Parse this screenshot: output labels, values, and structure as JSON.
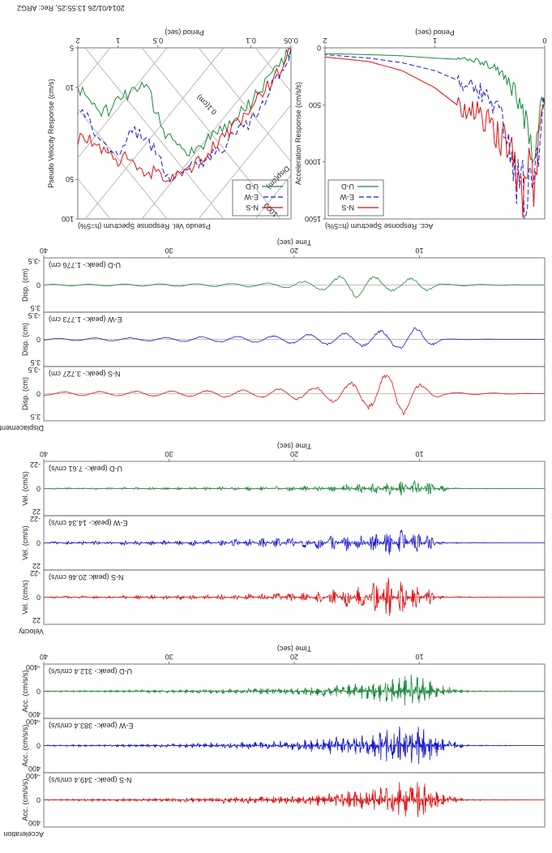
{
  "header": {
    "timestamp": "2014/01/26 13:55:25, Rec: ARG2",
    "period_label_top": "Period (sec)",
    "period_label_right": "Period (sec)"
  },
  "pseudo_velocity": {
    "title": "Pseudo Vel. Response Spectrum (h=5%)",
    "ylabel": "Pseudo Velocity Response (cm/s)",
    "diag_labels": [
      "0.1(cm)",
      "Disp(cm)",
      "1000",
      "10"
    ],
    "x_ticks": [
      "0.05",
      "0.1",
      "0.5",
      "1",
      "2"
    ],
    "y_ticks": [
      "5",
      "10",
      "50",
      "100"
    ],
    "scale": "log-log",
    "legend": [
      "U-D",
      "E-W",
      "N-S"
    ]
  },
  "accel_spectrum": {
    "title": "Acc. Response Spectrum (h=5%)",
    "ylabel": "Acceleration Response (cm/s/s)",
    "x_ticks": [
      "0",
      "1",
      "2"
    ],
    "y_ticks": [
      "0",
      "500",
      "1000",
      "1500"
    ],
    "legend": [
      "U-D",
      "E-W",
      "N-S"
    ]
  },
  "sections": [
    {
      "id": "disp",
      "group_label": "Displacement",
      "time_label": "Time (sec)",
      "time_ticks": [
        "10",
        "20",
        "30",
        "40"
      ],
      "traces": [
        {
          "comp": "U-D",
          "label": "U-D (peak:- 1.776 cm)",
          "ylabel": "Disp. (cm)",
          "ticks": [
            "-3.5",
            "0",
            "3.5"
          ],
          "color": "#1a8a3a"
        },
        {
          "comp": "E-W",
          "label": "E-W (peak:- 1.773 cm)",
          "ylabel": "Disp. (cm)",
          "ticks": [
            "-3.5",
            "0",
            "3.5"
          ],
          "color": "#1a1ad0"
        },
        {
          "comp": "N-S",
          "label": "N-S (peak:- 3.727 cm)",
          "ylabel": "Disp. (cm)",
          "ticks": [
            "-3.5",
            "0",
            "3.5"
          ],
          "color": "#e01010"
        }
      ]
    },
    {
      "id": "vel",
      "group_label": "Velocity",
      "time_label": "Time (sec)",
      "time_ticks": [
        "10",
        "20",
        "30",
        "40"
      ],
      "traces": [
        {
          "comp": "U-D",
          "label": "U-D (peak:- 7.61 cm/s)",
          "ylabel": "Vel. (cm/s)",
          "ticks": [
            "-22",
            "0",
            "22"
          ],
          "color": "#1a8a3a"
        },
        {
          "comp": "E-W",
          "label": "E-W (peak:- 14.34 cm/s)",
          "ylabel": "Vel. (cm/s)",
          "ticks": [
            "-22",
            "0",
            "22"
          ],
          "color": "#1a1ad0"
        },
        {
          "comp": "N-S",
          "label": "N-S (peak: 20.46 cm/s)",
          "ylabel": "Vel. (cm/s)",
          "ticks": [
            "-22",
            "0",
            "22"
          ],
          "color": "#e01010"
        }
      ]
    },
    {
      "id": "acc",
      "group_label": "Acceleration",
      "time_label": "Time (sec)",
      "time_ticks": [
        "10",
        "20",
        "30",
        "40"
      ],
      "traces": [
        {
          "comp": "U-D",
          "label": "U-D (peak:- 312.4 cm/s/s)",
          "ylabel": "Acc. (cm/s/s)",
          "ticks": [
            "-400",
            "0",
            "400"
          ],
          "color": "#1a8a3a"
        },
        {
          "comp": "E-W",
          "label": "E-W (peak:- 383.4 cm/s/s)",
          "ylabel": "Acc. (cm/s/s)",
          "ticks": [
            "-400",
            "0",
            "400"
          ],
          "color": "#1a1ad0"
        },
        {
          "comp": "N-S",
          "label": "N-S (peak:- 349.4 cm/s/s)",
          "ylabel": "Acc. (cm/s/s)",
          "ticks": [
            "-400",
            "0",
            "400"
          ],
          "color": "#e01010"
        }
      ]
    }
  ],
  "chart_data": [
    {
      "type": "line",
      "title": "Pseudo Vel. Response Spectrum (h=5%)",
      "xlabel": "Period (sec)",
      "ylabel": "Pseudo Velocity Response (cm/s)",
      "xlim": [
        0.05,
        2
      ],
      "ylim": [
        5,
        100
      ],
      "scale": "log",
      "x": [
        0.05,
        0.07,
        0.1,
        0.15,
        0.2,
        0.3,
        0.4,
        0.5,
        0.6,
        0.8,
        1.0,
        1.3,
        1.6,
        2.0
      ],
      "series": [
        {
          "name": "U-D",
          "color": "#1a8a3a",
          "values": [
            5,
            8,
            13,
            19,
            24,
            32,
            26,
            17,
            9,
            11,
            13,
            16,
            12,
            10
          ]
        },
        {
          "name": "E-W",
          "color": "#1a1ad0",
          "values": [
            5,
            10,
            18,
            26,
            34,
            42,
            50,
            34,
            24,
            22,
            34,
            28,
            18,
            15
          ]
        },
        {
          "name": "N-S",
          "color": "#e01010",
          "values": [
            5,
            9,
            14,
            22,
            30,
            42,
            52,
            42,
            48,
            32,
            38,
            30,
            26,
            25
          ]
        }
      ]
    },
    {
      "type": "line",
      "title": "Acc. Response Spectrum (h=5%)",
      "xlabel": "Period (sec)",
      "ylabel": "Acceleration Response (cm/s/s)",
      "xlim": [
        0,
        2
      ],
      "ylim": [
        0,
        1500
      ],
      "x": [
        0.02,
        0.06,
        0.1,
        0.14,
        0.18,
        0.22,
        0.26,
        0.3,
        0.4,
        0.5,
        0.6,
        0.8,
        1.0,
        1.3,
        1.6,
        2.0
      ],
      "series": [
        {
          "name": "U-D",
          "color": "#1a8a3a",
          "values": [
            450,
            700,
            900,
            800,
            650,
            500,
            420,
            350,
            220,
            150,
            120,
            100,
            90,
            70,
            60,
            50
          ]
        },
        {
          "name": "E-W",
          "color": "#1a1ad0",
          "values": [
            500,
            900,
            1300,
            1100,
            1450,
            1000,
            1250,
            900,
            600,
            450,
            380,
            280,
            200,
            130,
            90,
            60
          ]
        },
        {
          "name": "N-S",
          "color": "#e01010",
          "values": [
            480,
            850,
            1200,
            1050,
            1350,
            1150,
            1100,
            950,
            800,
            700,
            600,
            500,
            350,
            200,
            120,
            80
          ]
        }
      ]
    },
    {
      "type": "line",
      "title": "Displacement",
      "xlabel": "Time (sec)",
      "ylabel": "Disp. (cm)",
      "xlim": [
        0,
        40
      ],
      "ylim": [
        -3.5,
        3.5
      ],
      "series": [
        {
          "name": "U-D (peak:- 1.776 cm)",
          "color": "#1a8a3a",
          "envelope": [
            [
              0,
              0
            ],
            [
              8,
              0.15
            ],
            [
              10,
              1.2
            ],
            [
              12,
              0.8
            ],
            [
              15,
              1.78
            ],
            [
              18,
              0.7
            ],
            [
              22,
              0.3
            ],
            [
              30,
              0.2
            ],
            [
              40,
              0.1
            ]
          ]
        },
        {
          "name": "E-W (peak:- 1.773 cm)",
          "color": "#1a1ad0",
          "envelope": [
            [
              0,
              0
            ],
            [
              8,
              0.05
            ],
            [
              10,
              1.77
            ],
            [
              12,
              1.4
            ],
            [
              15,
              1.0
            ],
            [
              18,
              0.8
            ],
            [
              22,
              0.5
            ],
            [
              30,
              0.3
            ],
            [
              40,
              0.15
            ]
          ]
        },
        {
          "name": "N-S (peak:- 3.727 cm)",
          "color": "#e01010",
          "envelope": [
            [
              0,
              0
            ],
            [
              8,
              0.2
            ],
            [
              10,
              1.5
            ],
            [
              12,
              3.73
            ],
            [
              14,
              2.2
            ],
            [
              17,
              1.2
            ],
            [
              22,
              0.6
            ],
            [
              30,
              0.4
            ],
            [
              40,
              0.25
            ]
          ]
        }
      ]
    },
    {
      "type": "line",
      "title": "Velocity",
      "xlabel": "Time (sec)",
      "ylabel": "Vel. (cm/s)",
      "xlim": [
        0,
        40
      ],
      "ylim": [
        -22,
        22
      ],
      "series": [
        {
          "name": "U-D (peak:- 7.61 cm/s)",
          "color": "#1a8a3a",
          "envelope": [
            [
              0,
              0
            ],
            [
              7,
              0.5
            ],
            [
              10,
              7.6
            ],
            [
              13,
              6
            ],
            [
              15,
              5
            ],
            [
              18,
              2.5
            ],
            [
              25,
              1.5
            ],
            [
              40,
              0.6
            ]
          ]
        },
        {
          "name": "E-W (peak:- 14.34 cm/s)",
          "color": "#1a1ad0",
          "envelope": [
            [
              0,
              0
            ],
            [
              8,
              0.5
            ],
            [
              10,
              14.3
            ],
            [
              12,
              12
            ],
            [
              15,
              9
            ],
            [
              18,
              6
            ],
            [
              25,
              3
            ],
            [
              40,
              1.2
            ]
          ]
        },
        {
          "name": "N-S (peak: 20.46 cm/s)",
          "color": "#e01010",
          "envelope": [
            [
              0,
              0
            ],
            [
              8,
              0.8
            ],
            [
              10,
              12
            ],
            [
              12,
              18
            ],
            [
              13,
              20.46
            ],
            [
              15,
              10
            ],
            [
              18,
              5
            ],
            [
              25,
              2.5
            ],
            [
              40,
              1.0
            ]
          ]
        }
      ]
    },
    {
      "type": "line",
      "title": "Acceleration",
      "xlabel": "Time (sec)",
      "ylabel": "Acc. (cm/s/s)",
      "xlim": [
        0,
        40
      ],
      "ylim": [
        -400,
        400
      ],
      "series": [
        {
          "name": "U-D (peak:- 312.4 cm/s/s)",
          "color": "#1a8a3a",
          "envelope": [
            [
              0,
              0
            ],
            [
              6,
              10
            ],
            [
              8,
              90
            ],
            [
              10,
              312
            ],
            [
              12,
              200
            ],
            [
              15,
              120
            ],
            [
              20,
              60
            ],
            [
              30,
              25
            ],
            [
              40,
              10
            ]
          ]
        },
        {
          "name": "E-W (peak:- 383.4 cm/s/s)",
          "color": "#1a1ad0",
          "envelope": [
            [
              0,
              0
            ],
            [
              6,
              10
            ],
            [
              8,
              100
            ],
            [
              10,
              383
            ],
            [
              12,
              300
            ],
            [
              15,
              180
            ],
            [
              20,
              80
            ],
            [
              30,
              30
            ],
            [
              40,
              10
            ]
          ]
        },
        {
          "name": "N-S (peak:- 349.4 cm/s/s)",
          "color": "#e01010",
          "envelope": [
            [
              0,
              0
            ],
            [
              6,
              10
            ],
            [
              8,
              90
            ],
            [
              10,
              349
            ],
            [
              12,
              280
            ],
            [
              15,
              170
            ],
            [
              20,
              75
            ],
            [
              30,
              30
            ],
            [
              40,
              10
            ]
          ]
        }
      ]
    }
  ]
}
